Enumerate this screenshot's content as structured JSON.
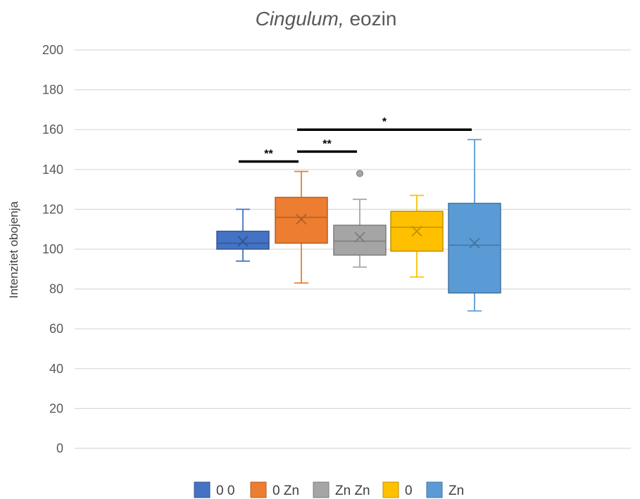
{
  "chart_data": {
    "type": "box",
    "title": {
      "italic_part": "Cingulum,",
      "rest": " eozin"
    },
    "xlabel": "",
    "ylabel": "Intenzitet obojenja",
    "ylim": [
      0,
      200
    ],
    "yticks": [
      0,
      20,
      40,
      60,
      80,
      100,
      120,
      140,
      160,
      180,
      200
    ],
    "grid": true,
    "legend_position": "bottom",
    "series": [
      {
        "name": "0 0",
        "color": "#4472C4",
        "whisker_low": 94,
        "q1": 100,
        "median": 103,
        "q3": 109,
        "whisker_high": 120,
        "mean": 104,
        "outliers": []
      },
      {
        "name": "0 Zn",
        "color": "#ED7D31",
        "whisker_low": 83,
        "q1": 103,
        "median": 116,
        "q3": 126,
        "whisker_high": 139,
        "mean": 115,
        "outliers": []
      },
      {
        "name": "Zn Zn",
        "color": "#A5A5A5",
        "whisker_low": 91,
        "q1": 97,
        "median": 104,
        "q3": 112,
        "whisker_high": 125,
        "mean": 106,
        "outliers": [
          138
        ]
      },
      {
        "name": "0",
        "color": "#FFC000",
        "whisker_low": 86,
        "q1": 99,
        "median": 111,
        "q3": 119,
        "whisker_high": 127,
        "mean": 109,
        "outliers": []
      },
      {
        "name": "Zn",
        "color": "#5B9BD5",
        "whisker_low": 69,
        "q1": 78,
        "median": 102,
        "q3": 123,
        "whisker_high": 155,
        "mean": 103,
        "outliers": []
      }
    ],
    "annotations": [
      {
        "from": 0,
        "to": 1,
        "y": 144,
        "label": "**"
      },
      {
        "from": 1,
        "to": 2,
        "y": 149,
        "label": "**"
      },
      {
        "from": 1,
        "to": 4,
        "y": 160,
        "label": "*"
      }
    ]
  }
}
